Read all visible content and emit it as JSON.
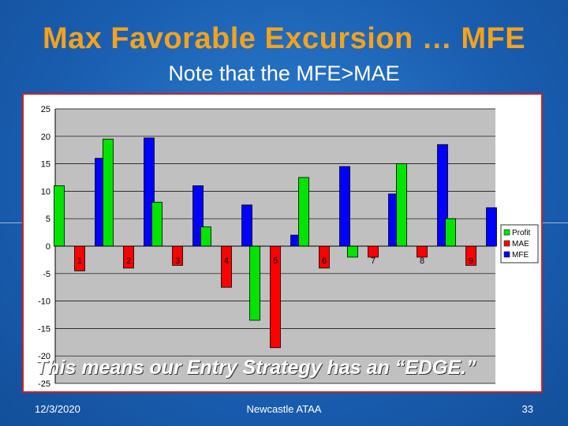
{
  "slide": {
    "title": "Max Favorable Excursion … MFE",
    "subtitle": "Note that the MFE>MAE",
    "caption": "This means our Entry Strategy has an “EDGE.”",
    "footer_date": "12/3/2020",
    "footer_center": "Newcastle ATAA",
    "footer_page": "33"
  },
  "chart_data": {
    "type": "bar",
    "categories": [
      "1",
      "2",
      "3",
      "4",
      "5",
      "6",
      "7",
      "8",
      "9"
    ],
    "series": [
      {
        "name": "Profit",
        "color": "#00e400",
        "values": [
          11,
          19.5,
          8,
          3.5,
          -13.5,
          12.5,
          -2,
          15,
          5
        ]
      },
      {
        "name": "MAE",
        "color": "#ff0000",
        "values": [
          -4.5,
          -4,
          -3.5,
          -7.5,
          -18.5,
          -4,
          -2,
          -2,
          -3.5
        ]
      },
      {
        "name": "MFE",
        "color": "#0000ff",
        "values": [
          16,
          19.7,
          11,
          7.5,
          2,
          14.5,
          9.5,
          18.5,
          7
        ]
      }
    ],
    "ylim": [
      -25,
      25
    ],
    "yticks": [
      25,
      20,
      15,
      10,
      5,
      0,
      -5,
      -10,
      -15,
      -20,
      -25
    ],
    "grid": true,
    "legend": "right",
    "plot_background": "#c0c0c0"
  }
}
